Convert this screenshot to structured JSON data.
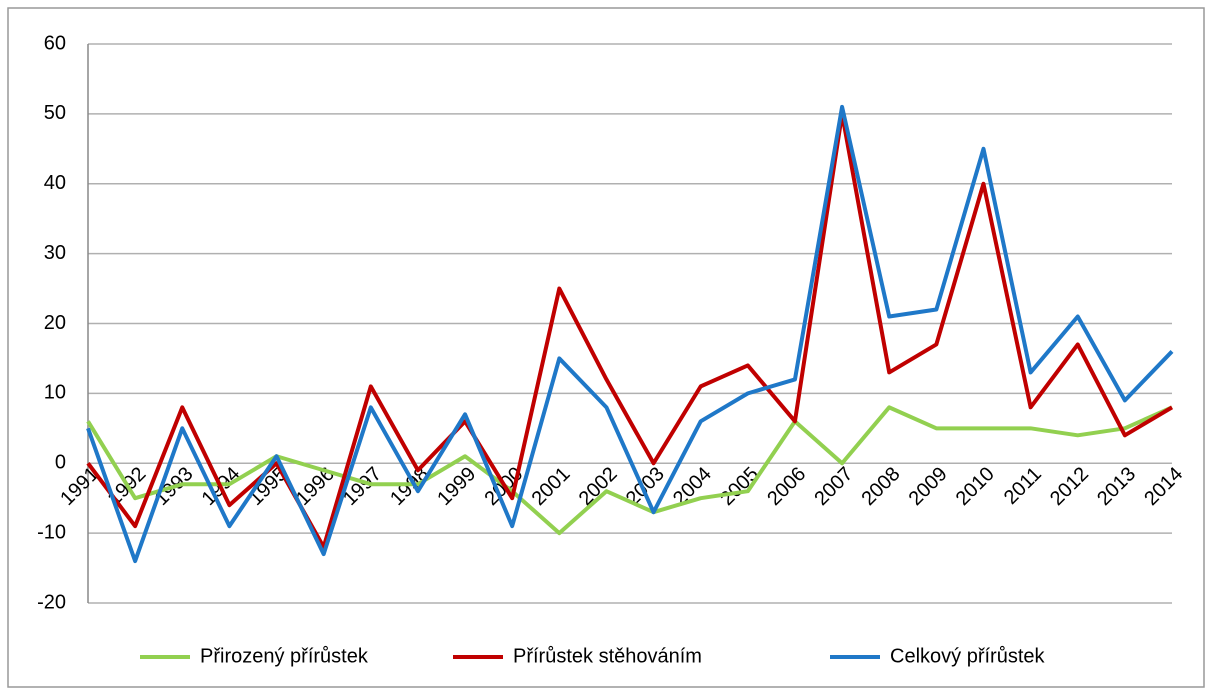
{
  "chart_data": {
    "type": "line",
    "categories": [
      "1991",
      "1992",
      "1993",
      "1994",
      "1995",
      "1996",
      "1997",
      "1998",
      "1999",
      "2000",
      "2001",
      "2002",
      "2003",
      "2004",
      "2005",
      "2006",
      "2007",
      "2008",
      "2009",
      "2010",
      "2011",
      "2012",
      "2013",
      "2014"
    ],
    "series": [
      {
        "name": "Přirozený přírůstek",
        "color": "#92d050",
        "values": [
          6,
          -5,
          -3,
          -3,
          1,
          -1,
          -3,
          -3,
          1,
          -4,
          -10,
          -4,
          -7,
          -5,
          -4,
          6,
          0,
          8,
          5,
          5,
          5,
          4,
          5,
          8
        ]
      },
      {
        "name": "Přírůstek stěhováním",
        "color": "#c00000",
        "values": [
          0,
          -9,
          8,
          -6,
          0,
          -12,
          11,
          -1,
          6,
          -5,
          25,
          12,
          0,
          11,
          14,
          6,
          50,
          13,
          17,
          40,
          8,
          17,
          4,
          8
        ]
      },
      {
        "name": "Celkový přírůstek",
        "color": "#1f78c8",
        "values": [
          5,
          -14,
          5,
          -9,
          1,
          -13,
          8,
          -4,
          7,
          -9,
          15,
          8,
          -7,
          6,
          10,
          12,
          51,
          21,
          22,
          45,
          13,
          21,
          9,
          16
        ]
      }
    ],
    "ylim": [
      -20,
      60
    ],
    "yticks": [
      -20,
      -10,
      0,
      10,
      20,
      30,
      40,
      50,
      60
    ],
    "grid": true,
    "legend": "bottom"
  }
}
